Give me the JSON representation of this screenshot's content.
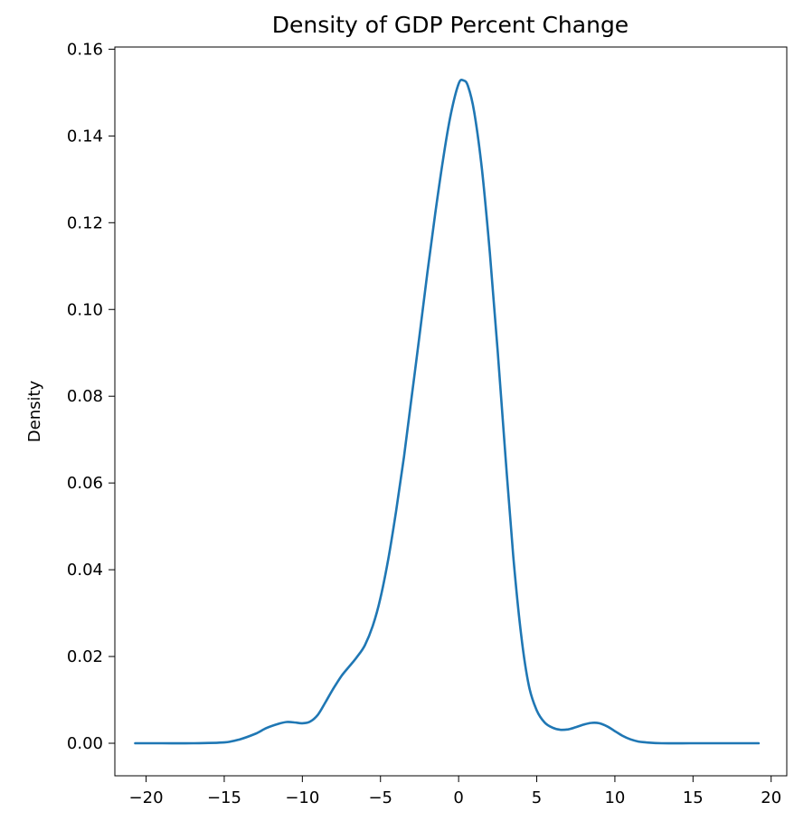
{
  "chart_data": {
    "type": "line",
    "title": "Density of GDP Percent Change",
    "xlabel": "",
    "ylabel": "Density",
    "xlim": [
      -22,
      21
    ],
    "ylim": [
      -0.0075,
      0.1605
    ],
    "x_ticks": [
      -20,
      -15,
      -10,
      -5,
      0,
      5,
      10,
      15,
      20
    ],
    "x_tick_labels": [
      "−20",
      "−15",
      "−10",
      "−5",
      "0",
      "5",
      "10",
      "15",
      "20"
    ],
    "y_ticks": [
      0.0,
      0.02,
      0.04,
      0.06,
      0.08,
      0.1,
      0.12,
      0.14,
      0.16
    ],
    "y_tick_labels": [
      "0.00",
      "0.02",
      "0.04",
      "0.06",
      "0.08",
      "0.10",
      "0.12",
      "0.14",
      "0.16"
    ],
    "grid": false,
    "colors": {
      "line": "#1f77b4",
      "axes": "#000000",
      "background": "#ffffff"
    },
    "series": [
      {
        "x": [
          -20.7,
          -19,
          -17,
          -15,
          -14,
          -13,
          -12.3,
          -11.5,
          -11,
          -10.5,
          -10,
          -9.5,
          -9,
          -8.5,
          -8,
          -7.5,
          -7,
          -6.5,
          -6,
          -5.5,
          -5,
          -4.5,
          -4,
          -3.5,
          -3,
          -2.5,
          -2,
          -1.5,
          -1,
          -0.5,
          0,
          0.3,
          0.6,
          1,
          1.5,
          2,
          2.5,
          3,
          3.5,
          4,
          4.5,
          5,
          5.5,
          6,
          6.5,
          7,
          7.5,
          8,
          8.5,
          9,
          9.5,
          10,
          10.5,
          11,
          11.5,
          12,
          13,
          15,
          17,
          19.2
        ],
        "y": [
          0.0,
          0.0,
          0.0,
          0.0002,
          0.0009,
          0.0022,
          0.0035,
          0.0045,
          0.0049,
          0.0048,
          0.0046,
          0.005,
          0.0066,
          0.0096,
          0.0127,
          0.0155,
          0.0177,
          0.0199,
          0.0226,
          0.027,
          0.0335,
          0.0425,
          0.0535,
          0.066,
          0.08,
          0.094,
          0.1085,
          0.122,
          0.1345,
          0.145,
          0.152,
          0.1528,
          0.1515,
          0.1455,
          0.132,
          0.113,
          0.0905,
          0.066,
          0.043,
          0.025,
          0.0132,
          0.0076,
          0.0048,
          0.0036,
          0.0031,
          0.0032,
          0.0037,
          0.0043,
          0.0047,
          0.0046,
          0.0039,
          0.0028,
          0.0017,
          0.0009,
          0.0004,
          0.0002,
          0.0,
          0.0,
          0.0,
          0.0
        ]
      }
    ]
  }
}
